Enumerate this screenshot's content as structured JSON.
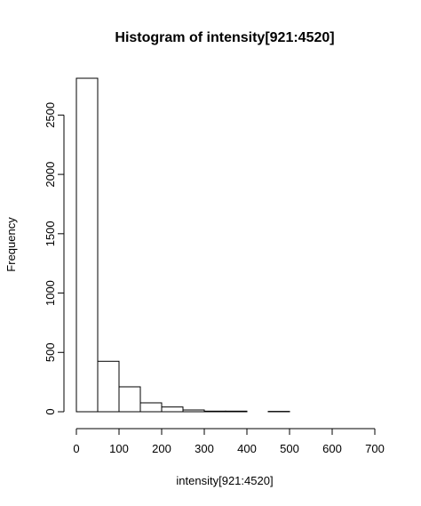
{
  "chart_data": {
    "type": "bar",
    "title": "Histogram of intensity[921:4520]",
    "xlabel": "intensity[921:4520]",
    "ylabel": "Frequency",
    "bin_edges": [
      0,
      50,
      100,
      150,
      200,
      250,
      300,
      350,
      400,
      450,
      500,
      550,
      600,
      650,
      700
    ],
    "counts": [
      2810,
      425,
      210,
      75,
      40,
      15,
      5,
      5,
      0,
      3,
      0,
      0,
      0,
      0
    ],
    "xlim": [
      0,
      700
    ],
    "ylim": [
      0,
      2810
    ],
    "x_ticks": [
      "0",
      "100",
      "200",
      "300",
      "400",
      "500",
      "600",
      "700"
    ],
    "y_ticks": [
      "0",
      "500",
      "1000",
      "1500",
      "2000",
      "2500"
    ],
    "grid": false,
    "legend": "none"
  }
}
